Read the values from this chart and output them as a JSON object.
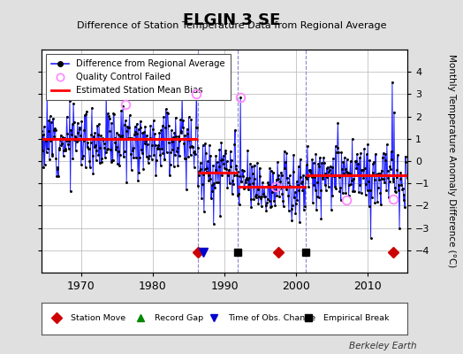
{
  "title": "ELGIN 3 SE",
  "subtitle": "Difference of Station Temperature Data from Regional Average",
  "ylabel": "Monthly Temperature Anomaly Difference (°C)",
  "xlabel_years": [
    1970,
    1980,
    1990,
    2000,
    2010
  ],
  "yticks": [
    -4,
    -3,
    -2,
    -1,
    0,
    1,
    2,
    3,
    4
  ],
  "ylim": [
    -5,
    5
  ],
  "xlim": [
    1964.5,
    2015.5
  ],
  "background_color": "#e0e0e0",
  "plot_bg_color": "#ffffff",
  "grid_color": "#c0c0c0",
  "bias_segments": [
    {
      "x_start": 1964.5,
      "x_end": 1986.3,
      "y": 1.0
    },
    {
      "x_start": 1986.3,
      "x_end": 1991.8,
      "y": -0.5
    },
    {
      "x_start": 1991.8,
      "x_end": 2001.3,
      "y": -1.15
    },
    {
      "x_start": 2001.3,
      "x_end": 2015.5,
      "y": -0.65
    }
  ],
  "break_vlines": [
    1986.3,
    1991.8,
    2001.3
  ],
  "station_moves": [
    1986.3,
    1997.5,
    2013.5
  ],
  "obs_changes": [
    1987.0
  ],
  "empirical_breaks": [
    1991.8,
    2001.3
  ],
  "marker_y": -4.1,
  "qc_failed": [
    {
      "year": 1976.2,
      "val": 2.55
    },
    {
      "year": 1986.1,
      "val": 3.0
    },
    {
      "year": 1992.2,
      "val": 2.85
    },
    {
      "year": 1997.1,
      "val": -1.15
    },
    {
      "year": 2007.0,
      "val": -1.75
    },
    {
      "year": 2013.5,
      "val": -1.7
    }
  ],
  "spike_overrides": [
    {
      "year": 1986.1,
      "val": 3.4
    },
    {
      "year": 1992.2,
      "val": 2.85
    },
    {
      "year": 2013.42,
      "val": 3.55
    },
    {
      "year": 2013.67,
      "val": 2.2
    },
    {
      "year": 1988.5,
      "val": -2.8
    },
    {
      "year": 2000.5,
      "val": -2.75
    }
  ],
  "watermark": "Berkeley Earth",
  "legend_main": [
    "Difference from Regional Average",
    "Quality Control Failed",
    "Estimated Station Mean Bias"
  ],
  "legend_bottom": [
    {
      "label": "Station Move",
      "marker": "D",
      "color": "#cc0000"
    },
    {
      "label": "Record Gap",
      "marker": "^",
      "color": "#008800"
    },
    {
      "label": "Time of Obs. Change",
      "marker": "v",
      "color": "#0000cc"
    },
    {
      "label": "Empirical Break",
      "marker": "s",
      "color": "#000000"
    }
  ]
}
